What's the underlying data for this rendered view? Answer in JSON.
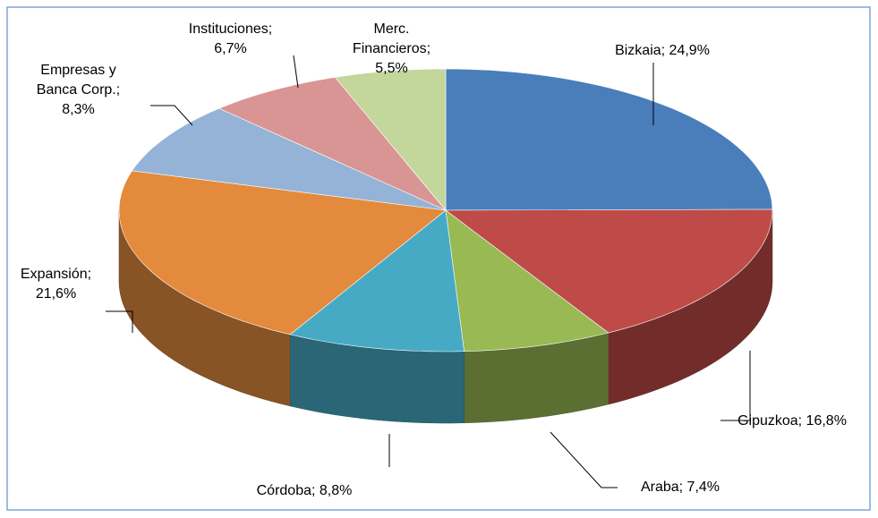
{
  "chart_data": {
    "type": "pie",
    "values": [
      24.9,
      16.8,
      7.4,
      8.8,
      21.6,
      8.3,
      6.7,
      5.5
    ],
    "value_labels": [
      "Bizkaia; 24,9%",
      "Gipuzkoa; 16,8%",
      "Araba; 7,4%",
      "Córdoba; 8,8%",
      "Expansión; 21,6%",
      "Empresas y Banca Corp.; 8,3%",
      "Instituciones; 6,7%",
      "Merc. Financieros; 5,5%"
    ],
    "colors": [
      "#4a7ebb",
      "#be4b48",
      "#98b954",
      "#46aac5",
      "#e38a3d",
      "#95b3d7",
      "#d99594",
      "#c3d69b"
    ]
  }
}
